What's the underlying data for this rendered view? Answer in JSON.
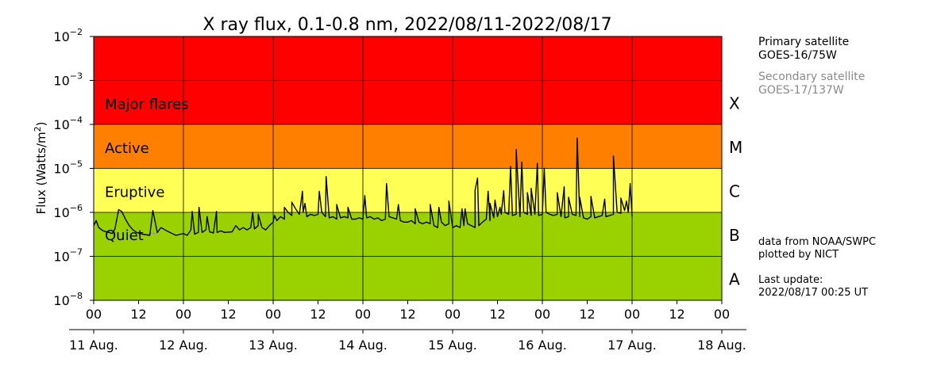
{
  "chart_data": {
    "type": "line",
    "title": "X ray flux, 0.1-0.8 nm, 2022/08/11-2022/08/17",
    "ylabel": "Flux (Watts/m",
    "ylabel_sup": "2",
    "ylabel_close": ")",
    "yscale": "log",
    "ylim": [
      1e-08,
      0.01
    ],
    "xlim": [
      "2022-08-11 00:00",
      "2022-08-18 00:00"
    ],
    "grid": true,
    "y_ticks": [
      {
        "value": 1e-08,
        "base": "10",
        "exp": "−8"
      },
      {
        "value": 1e-07,
        "base": "10",
        "exp": "−7"
      },
      {
        "value": 1e-06,
        "base": "10",
        "exp": "−6"
      },
      {
        "value": 1e-05,
        "base": "10",
        "exp": "−5"
      },
      {
        "value": 0.0001,
        "base": "10",
        "exp": "−4"
      },
      {
        "value": 0.001,
        "base": "10",
        "exp": "−3"
      },
      {
        "value": 0.01,
        "base": "10",
        "exp": "−2"
      }
    ],
    "x_hour_ticks": [
      {
        "t": "2022-08-11 00:00",
        "label": "00"
      },
      {
        "t": "2022-08-11 12:00",
        "label": "12"
      },
      {
        "t": "2022-08-12 00:00",
        "label": "00"
      },
      {
        "t": "2022-08-12 12:00",
        "label": "12"
      },
      {
        "t": "2022-08-13 00:00",
        "label": "00"
      },
      {
        "t": "2022-08-13 12:00",
        "label": "12"
      },
      {
        "t": "2022-08-14 00:00",
        "label": "00"
      },
      {
        "t": "2022-08-14 12:00",
        "label": "12"
      },
      {
        "t": "2022-08-15 00:00",
        "label": "00"
      },
      {
        "t": "2022-08-15 12:00",
        "label": "12"
      },
      {
        "t": "2022-08-16 00:00",
        "label": "00"
      },
      {
        "t": "2022-08-16 12:00",
        "label": "12"
      },
      {
        "t": "2022-08-17 00:00",
        "label": "00"
      },
      {
        "t": "2022-08-17 12:00",
        "label": "12"
      },
      {
        "t": "2022-08-18 00:00",
        "label": "00"
      }
    ],
    "x_day_ticks": [
      {
        "t": "2022-08-11 00:00",
        "label": "11 Aug."
      },
      {
        "t": "2022-08-12 00:00",
        "label": "12 Aug."
      },
      {
        "t": "2022-08-13 00:00",
        "label": "13 Aug."
      },
      {
        "t": "2022-08-14 00:00",
        "label": "14 Aug."
      },
      {
        "t": "2022-08-15 00:00",
        "label": "15 Aug."
      },
      {
        "t": "2022-08-16 00:00",
        "label": "16 Aug."
      },
      {
        "t": "2022-08-17 00:00",
        "label": "17 Aug."
      },
      {
        "t": "2022-08-18 00:00",
        "label": "18 Aug."
      }
    ],
    "bands": [
      {
        "from": 0.0001,
        "to": 0.01,
        "color": "#ff0000",
        "label": "Major flares"
      },
      {
        "from": 1e-05,
        "to": 0.0001,
        "color": "#ff7f00",
        "label": "Active"
      },
      {
        "from": 1e-06,
        "to": 1e-05,
        "color": "#ffff55",
        "label": "Eruptive"
      },
      {
        "from": 1e-08,
        "to": 1e-06,
        "color": "#99d200",
        "label": "Quiet"
      }
    ],
    "flare_classes": [
      {
        "label": "X",
        "center": 0.000316
      },
      {
        "label": "M",
        "center": 3.16e-05
      },
      {
        "label": "C",
        "center": 3.16e-06
      },
      {
        "label": "B",
        "center": 3.16e-07
      },
      {
        "label": "A",
        "center": 3.16e-08
      }
    ],
    "series": [
      {
        "color": "#000000",
        "points": [
          [
            "2022-08-11 00:00",
            5e-07
          ],
          [
            "2022-08-11 00:40",
            6.5e-07
          ],
          [
            "2022-08-11 01:20",
            4.5e-07
          ],
          [
            "2022-08-11 02:30",
            3.8e-07
          ],
          [
            "2022-08-11 04:00",
            3.5e-07
          ],
          [
            "2022-08-11 05:00",
            3.3e-07
          ],
          [
            "2022-08-11 05:40",
            4.2e-07
          ],
          [
            "2022-08-11 06:40",
            1.15e-06
          ],
          [
            "2022-08-11 07:30",
            1.05e-06
          ],
          [
            "2022-08-11 08:30",
            7e-07
          ],
          [
            "2022-08-11 09:30",
            5e-07
          ],
          [
            "2022-08-11 10:30",
            4e-07
          ],
          [
            "2022-08-11 11:30",
            3.5e-07
          ],
          [
            "2022-08-11 13:00",
            3.2e-07
          ],
          [
            "2022-08-11 15:00",
            3e-07
          ],
          [
            "2022-08-11 17:00",
            3.5e-07
          ],
          [
            "2022-08-11 18:00",
            4.5e-07
          ],
          [
            "2022-08-11 19:30",
            3.8e-07
          ],
          [
            "2022-08-11 21:00",
            3.3e-07
          ],
          [
            "2022-08-11 22:00",
            3e-07
          ],
          [
            "2022-08-12 00:00",
            3.3e-07
          ],
          [
            "2022-08-12 01:00",
            3e-07
          ],
          [
            "2022-08-12 02:00",
            4e-07
          ],
          [
            "2022-08-12 03:00",
            3.2e-07
          ],
          [
            "2022-08-12 04:00",
            3.5e-07
          ],
          [
            "2022-08-12 05:00",
            3.5e-07
          ],
          [
            "2022-08-12 06:00",
            4e-07
          ],
          [
            "2022-08-12 07:00",
            3.6e-07
          ],
          [
            "2022-08-12 08:00",
            3.4e-07
          ],
          [
            "2022-08-12 09:00",
            3.5e-07
          ],
          [
            "2022-08-12 10:00",
            3.8e-07
          ],
          [
            "2022-08-12 11:00",
            3.5e-07
          ],
          [
            "2022-08-12 13:00",
            3.6e-07
          ],
          [
            "2022-08-12 14:00",
            5e-07
          ],
          [
            "2022-08-12 15:00",
            4e-07
          ],
          [
            "2022-08-12 16:00",
            4.5e-07
          ],
          [
            "2022-08-12 17:00",
            4e-07
          ],
          [
            "2022-08-12 18:00",
            4.5e-07
          ],
          [
            "2022-08-12 19:00",
            4.2e-07
          ],
          [
            "2022-08-12 20:00",
            5e-07
          ],
          [
            "2022-08-12 21:00",
            4.5e-07
          ],
          [
            "2022-08-12 22:00",
            4e-07
          ],
          [
            "2022-08-12 23:00",
            5e-07
          ],
          [
            "2022-08-13 00:00",
            6e-07
          ],
          [
            "2022-08-13 01:00",
            6.5e-07
          ],
          [
            "2022-08-13 02:00",
            8e-07
          ],
          [
            "2022-08-13 03:00",
            7e-07
          ],
          [
            "2022-08-13 04:00",
            1e-06
          ],
          [
            "2022-08-13 05:00",
            8.5e-07
          ],
          [
            "2022-08-13 06:00",
            1.2e-06
          ],
          [
            "2022-08-13 07:00",
            9e-07
          ],
          [
            "2022-08-13 08:00",
            1e-06
          ],
          [
            "2022-08-13 09:00",
            8e-07
          ],
          [
            "2022-08-13 10:00",
            9e-07
          ],
          [
            "2022-08-13 11:00",
            8.5e-07
          ],
          [
            "2022-08-13 12:00",
            9e-07
          ],
          [
            "2022-08-13 13:00",
            1e-06
          ],
          [
            "2022-08-13 14:00",
            8e-07
          ],
          [
            "2022-08-13 15:00",
            7.5e-07
          ],
          [
            "2022-08-13 16:00",
            8e-07
          ],
          [
            "2022-08-13 17:00",
            7e-07
          ],
          [
            "2022-08-13 18:00",
            7.5e-07
          ],
          [
            "2022-08-13 19:00",
            8e-07
          ],
          [
            "2022-08-13 20:00",
            7.5e-07
          ],
          [
            "2022-08-13 21:00",
            7e-07
          ],
          [
            "2022-08-13 22:00",
            7e-07
          ],
          [
            "2022-08-13 23:00",
            7.5e-07
          ],
          [
            "2022-08-14 00:00",
            7e-07
          ],
          [
            "2022-08-14 01:00",
            7.5e-07
          ],
          [
            "2022-08-14 02:00",
            8e-07
          ],
          [
            "2022-08-14 03:00",
            7e-07
          ],
          [
            "2022-08-14 04:00",
            7.5e-07
          ],
          [
            "2022-08-14 05:00",
            6.5e-07
          ],
          [
            "2022-08-14 06:00",
            7e-07
          ],
          [
            "2022-08-14 07:00",
            8e-07
          ],
          [
            "2022-08-14 08:00",
            7.5e-07
          ],
          [
            "2022-08-14 09:00",
            7e-07
          ],
          [
            "2022-08-14 10:00",
            6.5e-07
          ],
          [
            "2022-08-14 11:00",
            6e-07
          ],
          [
            "2022-08-14 12:00",
            6e-07
          ],
          [
            "2022-08-14 13:00",
            6.5e-07
          ],
          [
            "2022-08-14 14:00",
            5.5e-07
          ],
          [
            "2022-08-14 15:00",
            6e-07
          ],
          [
            "2022-08-14 16:00",
            5.5e-07
          ],
          [
            "2022-08-14 17:00",
            6e-07
          ],
          [
            "2022-08-14 18:00",
            5.5e-07
          ],
          [
            "2022-08-14 19:00",
            5e-07
          ],
          [
            "2022-08-14 20:00",
            4.5e-07
          ],
          [
            "2022-08-14 21:00",
            6e-07
          ],
          [
            "2022-08-14 22:00",
            5e-07
          ],
          [
            "2022-08-14 23:00",
            5.5e-07
          ],
          [
            "2022-08-15 00:00",
            4.5e-07
          ],
          [
            "2022-08-15 01:00",
            5e-07
          ],
          [
            "2022-08-15 02:00",
            4.5e-07
          ],
          [
            "2022-08-15 03:00",
            5e-07
          ],
          [
            "2022-08-15 04:00",
            5.5e-07
          ],
          [
            "2022-08-15 05:00",
            5e-07
          ],
          [
            "2022-08-15 06:00",
            4.5e-07
          ],
          [
            "2022-08-15 07:00",
            5e-07
          ],
          [
            "2022-08-15 08:00",
            6e-07
          ],
          [
            "2022-08-15 09:00",
            7e-07
          ],
          [
            "2022-08-15 10:00",
            6.5e-07
          ],
          [
            "2022-08-15 11:00",
            7.5e-07
          ],
          [
            "2022-08-15 12:00",
            8e-07
          ],
          [
            "2022-08-15 13:00",
            9e-07
          ],
          [
            "2022-08-15 14:00",
            1e-06
          ],
          [
            "2022-08-15 15:00",
            9e-07
          ],
          [
            "2022-08-15 16:00",
            8.5e-07
          ],
          [
            "2022-08-15 17:00",
            9e-07
          ],
          [
            "2022-08-15 18:00",
            8e-07
          ],
          [
            "2022-08-15 19:00",
            1e-06
          ],
          [
            "2022-08-15 20:00",
            9e-07
          ],
          [
            "2022-08-15 21:00",
            8.5e-07
          ],
          [
            "2022-08-15 22:00",
            9e-07
          ],
          [
            "2022-08-15 23:00",
            8.5e-07
          ],
          [
            "2022-08-16 00:00",
            9e-07
          ],
          [
            "2022-08-16 01:00",
            1e-06
          ],
          [
            "2022-08-16 02:00",
            9e-07
          ],
          [
            "2022-08-16 03:00",
            8.5e-07
          ],
          [
            "2022-08-16 04:00",
            9e-07
          ],
          [
            "2022-08-16 05:00",
            8e-07
          ],
          [
            "2022-08-16 06:00",
            7.5e-07
          ],
          [
            "2022-08-16 07:00",
            8e-07
          ],
          [
            "2022-08-16 08:00",
            9e-07
          ],
          [
            "2022-08-16 09:00",
            8.5e-07
          ],
          [
            "2022-08-16 10:00",
            8e-07
          ],
          [
            "2022-08-16 11:00",
            7.5e-07
          ],
          [
            "2022-08-16 12:00",
            7e-07
          ],
          [
            "2022-08-16 13:00",
            8e-07
          ],
          [
            "2022-08-16 14:00",
            7.5e-07
          ],
          [
            "2022-08-16 15:00",
            8e-07
          ],
          [
            "2022-08-16 16:00",
            8.5e-07
          ],
          [
            "2022-08-16 17:00",
            8e-07
          ],
          [
            "2022-08-16 18:00",
            8.5e-07
          ],
          [
            "2022-08-16 19:00",
            9e-07
          ],
          [
            "2022-08-16 20:00",
            1e-06
          ],
          [
            "2022-08-16 21:00",
            9.5e-07
          ],
          [
            "2022-08-16 22:00",
            1.1e-06
          ],
          [
            "2022-08-16 23:00",
            1e-06
          ],
          [
            "2022-08-17 00:00",
            8e-07
          ]
        ]
      }
    ],
    "peaks": [
      [
        "2022-08-11 15:50",
        1.1e-06
      ],
      [
        "2022-08-12 02:20",
        1.05e-06
      ],
      [
        "2022-08-12 04:10",
        1.3e-06
      ],
      [
        "2022-08-12 06:20",
        8e-07
      ],
      [
        "2022-08-12 08:50",
        1.05e-06
      ],
      [
        "2022-08-12 18:30",
        1e-06
      ],
      [
        "2022-08-12 20:00",
        9e-07
      ],
      [
        "2022-08-13 00:20",
        8.5e-07
      ],
      [
        "2022-08-13 03:00",
        1.3e-06
      ],
      [
        "2022-08-13 05:00",
        1.7e-06
      ],
      [
        "2022-08-13 07:50",
        3e-06
      ],
      [
        "2022-08-13 08:30",
        1.6e-06
      ],
      [
        "2022-08-13 12:20",
        3e-06
      ],
      [
        "2022-08-13 14:10",
        6.5e-06
      ],
      [
        "2022-08-13 17:00",
        1.5e-06
      ],
      [
        "2022-08-13 20:00",
        1.3e-06
      ],
      [
        "2022-08-14 00:30",
        2.4e-06
      ],
      [
        "2022-08-14 06:20",
        4.5e-06
      ],
      [
        "2022-08-14 09:30",
        1.5e-06
      ],
      [
        "2022-08-14 14:00",
        1.2e-06
      ],
      [
        "2022-08-14 18:00",
        1.5e-06
      ],
      [
        "2022-08-14 20:20",
        1.3e-06
      ],
      [
        "2022-08-14 23:00",
        1.8e-06
      ],
      [
        "2022-08-15 02:30",
        1.2e-06
      ],
      [
        "2022-08-15 06:40",
        6e-06
      ],
      [
        "2022-08-15 10:00",
        1.6e-06
      ],
      [
        "2022-08-15 12:40",
        1.3e-06
      ],
      [
        "2022-08-16 05:50",
        3.8e-06
      ],
      [
        "2022-08-16 10:00",
        2.2e-06
      ],
      [
        "2022-08-16 16:40",
        2e-06
      ],
      [
        "2022-08-16 22:30",
        1.8e-06
      ],
      [
        "2022-08-15 03:20",
        1.2e-06
      ],
      [
        "2022-08-15 06:00",
        3.2e-06
      ],
      [
        "2022-08-15 09:30",
        3e-06
      ],
      [
        "2022-08-15 11:20",
        1.9e-06
      ],
      [
        "2022-08-15 13:40",
        3.1e-06
      ],
      [
        "2022-08-15 15:30",
        1.1e-05
      ],
      [
        "2022-08-15 17:00",
        2.7e-05
      ],
      [
        "2022-08-15 18:30",
        1.4e-05
      ],
      [
        "2022-08-15 20:00",
        2.8e-06
      ],
      [
        "2022-08-15 21:00",
        3.5e-06
      ],
      [
        "2022-08-15 22:40",
        1.3e-05
      ],
      [
        "2022-08-16 00:30",
        1e-05
      ],
      [
        "2022-08-16 04:00",
        2.8e-06
      ],
      [
        "2022-08-16 07:00",
        2.2e-06
      ],
      [
        "2022-08-16 09:20",
        4.9e-05
      ],
      [
        "2022-08-16 13:00",
        2.3e-06
      ],
      [
        "2022-08-16 19:00",
        1.9e-05
      ],
      [
        "2022-08-16 21:00",
        2.1e-06
      ],
      [
        "2022-08-16 23:30",
        4.5e-06
      ]
    ],
    "secondary_points": [
      [
        "2022-08-11 14:20",
        3.1e-07
      ],
      [
        "2022-08-11 15:30",
        3.4e-07
      ],
      [
        "2022-08-11 16:30",
        3.3e-07
      ],
      [
        "2022-08-11 17:30",
        3.5e-07
      ]
    ]
  },
  "sidebar": {
    "primary_title": "Primary satellite",
    "primary_name": "GOES-16/75W",
    "secondary_title": "Secondary satellite",
    "secondary_name": "GOES-17/137W",
    "source_line1": "data from NOAA/SWPC",
    "source_line2": "plotted by NICT",
    "update_label": "Last update:",
    "update_value": "2022/08/17 00:25 UT"
  }
}
